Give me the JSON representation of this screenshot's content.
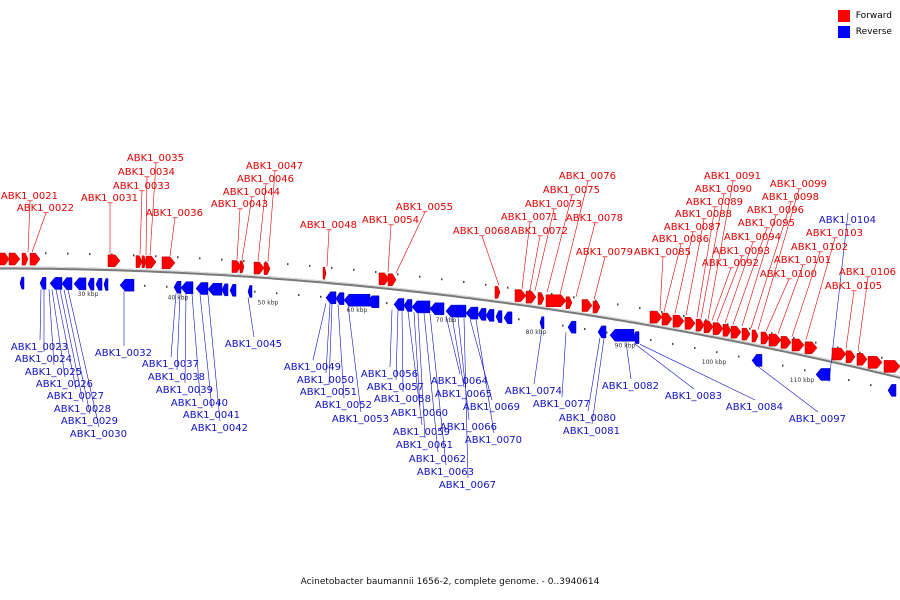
{
  "legend": {
    "forward_label": "Forward",
    "reverse_label": "Reverse",
    "forward_color": "#ff0000",
    "reverse_color": "#0000ff"
  },
  "caption": "Acinetobacter baumannii 1656-2, complete genome. - 0..3940614",
  "scale_labels": [
    "30 kbp",
    "40 kbp",
    "50 kbp",
    "60 kbp",
    "70 kbp",
    "80 kbp",
    "90 kbp",
    "100 kbp",
    "110 kbp"
  ],
  "forward_genes": [
    "ABK1_0021",
    "ABK1_0022",
    "ABK1_0031",
    "ABK1_0033",
    "ABK1_0034",
    "ABK1_0035",
    "ABK1_0036",
    "ABK1_0043",
    "ABK1_0044",
    "ABK1_0046",
    "ABK1_0047",
    "ABK1_0048",
    "ABK1_0054",
    "ABK1_0055",
    "ABK1_0068",
    "ABK1_0071",
    "ABK1_0072",
    "ABK1_0073",
    "ABK1_0075",
    "ABK1_0076",
    "ABK1_0078",
    "ABK1_0079",
    "ABK1_0085",
    "ABK1_0086",
    "ABK1_0087",
    "ABK1_0088",
    "ABK1_0089",
    "ABK1_0090",
    "ABK1_0091",
    "ABK1_0092",
    "ABK1_0093",
    "ABK1_0094",
    "ABK1_0095",
    "ABK1_0096",
    "ABK1_0098",
    "ABK1_0099",
    "ABK1_0100",
    "ABK1_0101",
    "ABK1_0102",
    "ABK1_0103",
    "ABK1_0105",
    "ABK1_0106"
  ],
  "reverse_genes": [
    "ABK1_0023",
    "ABK1_0024",
    "ABK1_0025",
    "ABK1_0026",
    "ABK1_0027",
    "ABK1_0028",
    "ABK1_0029",
    "ABK1_0030",
    "ABK1_0032",
    "ABK1_0037",
    "ABK1_0038",
    "ABK1_0039",
    "ABK1_0040",
    "ABK1_0041",
    "ABK1_0042",
    "ABK1_0045",
    "ABK1_0049",
    "ABK1_0050",
    "ABK1_0051",
    "ABK1_0052",
    "ABK1_0053",
    "ABK1_0056",
    "ABK1_0057",
    "ABK1_0058",
    "ABK1_0059",
    "ABK1_0060",
    "ABK1_0061",
    "ABK1_0062",
    "ABK1_0063",
    "ABK1_0064",
    "ABK1_0065",
    "ABK1_0066",
    "ABK1_0067",
    "ABK1_0069",
    "ABK1_0070",
    "ABK1_0074",
    "ABK1_0077",
    "ABK1_0080",
    "ABK1_0081",
    "ABK1_0082",
    "ABK1_0083",
    "ABK1_0084",
    "ABK1_0097",
    "ABK1_0104"
  ]
}
